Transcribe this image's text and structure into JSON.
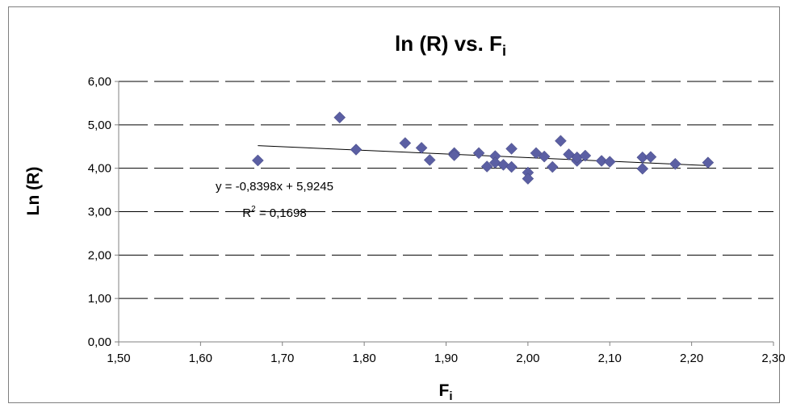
{
  "chart_data": {
    "type": "scatter",
    "title": "ln (R) vs. F",
    "title_subscript": "i",
    "xlabel": "F",
    "xlabel_subscript": "i",
    "ylabel": "Ln (R)",
    "xlim": [
      1.5,
      2.3
    ],
    "ylim": [
      0.0,
      6.0
    ],
    "xticks": [
      "1,50",
      "1,60",
      "1,70",
      "1,80",
      "1,90",
      "2,00",
      "2,10",
      "2,20",
      "2,30"
    ],
    "yticks": [
      "0,00",
      "1,00",
      "2,00",
      "3,00",
      "4,00",
      "5,00",
      "6,00"
    ],
    "grid": "horizontal dashed",
    "legend": "none",
    "marker": "diamond",
    "marker_color": "#5b5fa3",
    "series": [
      {
        "points": [
          [
            1.67,
            4.18
          ],
          [
            1.77,
            5.17
          ],
          [
            1.79,
            4.43
          ],
          [
            1.85,
            4.58
          ],
          [
            1.87,
            4.47
          ],
          [
            1.88,
            4.19
          ],
          [
            1.91,
            4.35
          ],
          [
            1.91,
            4.3
          ],
          [
            1.94,
            4.35
          ],
          [
            1.95,
            4.04
          ],
          [
            1.96,
            4.28
          ],
          [
            1.96,
            4.13
          ],
          [
            1.97,
            4.08
          ],
          [
            1.98,
            4.45
          ],
          [
            1.98,
            4.03
          ],
          [
            2.0,
            3.9
          ],
          [
            2.0,
            3.76
          ],
          [
            2.01,
            4.35
          ],
          [
            2.02,
            4.27
          ],
          [
            2.03,
            4.03
          ],
          [
            2.04,
            4.63
          ],
          [
            2.05,
            4.32
          ],
          [
            2.06,
            4.17
          ],
          [
            2.06,
            4.25
          ],
          [
            2.07,
            4.29
          ],
          [
            2.09,
            4.17
          ],
          [
            2.1,
            4.15
          ],
          [
            2.14,
            4.25
          ],
          [
            2.14,
            3.99
          ],
          [
            2.15,
            4.26
          ],
          [
            2.18,
            4.1
          ],
          [
            2.22,
            4.13
          ]
        ]
      }
    ],
    "trendline": {
      "type": "linear",
      "slope": -0.8398,
      "intercept": 5.9245,
      "x_range": [
        1.67,
        2.22
      ],
      "equation_label": "y = -0,8398x + 5,9245",
      "r2_label_prefix": "R",
      "r2_label_sup": "2",
      "r2_label_value": " = 0,1698"
    }
  }
}
